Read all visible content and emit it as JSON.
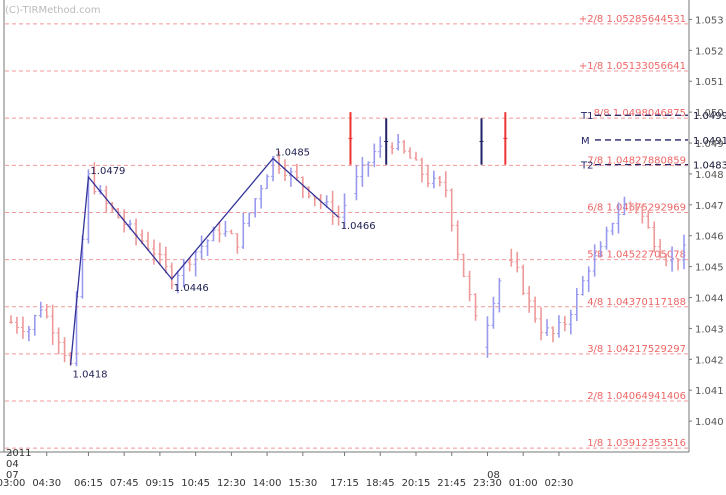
{
  "watermark": "(C)-TIRMethod.com",
  "chart_data": {
    "type": "bar",
    "subtype": "ohlc",
    "ylim": [
      1.039,
      1.0535
    ],
    "yticks": [
      1.053,
      1.052,
      1.051,
      1.05,
      1.049,
      1.048,
      1.047,
      1.046,
      1.045,
      1.044,
      1.043,
      1.042,
      1.041,
      1.04
    ],
    "ytick_labels": [
      "1.053",
      "1.052",
      "1.051",
      "1.050",
      "1.049",
      "1.048",
      "1.047",
      "1.046",
      "1.045",
      "1.044",
      "1.043",
      "1.042",
      "1.041",
      "1.040"
    ],
    "xticks": [
      {
        "i": 0,
        "label": "03:00"
      },
      {
        "i": 6,
        "label": "04:30"
      },
      {
        "i": 13,
        "label": "06:15"
      },
      {
        "i": 19,
        "label": "07:45"
      },
      {
        "i": 25,
        "label": "09:15"
      },
      {
        "i": 31,
        "label": "10:45"
      },
      {
        "i": 37,
        "label": "12:30"
      },
      {
        "i": 43,
        "label": "14:00"
      },
      {
        "i": 49,
        "label": "15:30"
      },
      {
        "i": 56,
        "label": "17:15"
      },
      {
        "i": 62,
        "label": "18:45"
      },
      {
        "i": 68,
        "label": "20:15"
      },
      {
        "i": 74,
        "label": "21:45"
      },
      {
        "i": 80,
        "label": "23:30"
      },
      {
        "i": 86,
        "label": "01:00"
      },
      {
        "i": 92,
        "label": "02:30"
      }
    ],
    "date_labels": {
      "year": "2011",
      "month": "04",
      "day": "07",
      "next_day": "08",
      "next_day_index": 80
    },
    "murrey_levels": [
      {
        "label": "+2/8 1.05285644531",
        "value": 1.05285644531
      },
      {
        "label": "+1/8 1.05133056641",
        "value": 1.05133056641
      },
      {
        "label": "8/8 1.0498046875",
        "value": 1.0498046875
      },
      {
        "label": "7/8 1.04827880859",
        "value": 1.04827880859
      },
      {
        "label": "6/8 1.04675292969",
        "value": 1.04675292969
      },
      {
        "label": "5/8 1.04522705078",
        "value": 1.04522705078
      },
      {
        "label": "4/8 1.04370117188",
        "value": 1.04370117188
      },
      {
        "label": "3/8 1.04217529297",
        "value": 1.04217529297
      },
      {
        "label": "2/8 1.04064941406",
        "value": 1.04064941406
      },
      {
        "label": "1/8 1.03912353516",
        "value": 1.03912353516
      }
    ],
    "targets": [
      {
        "name": "T1",
        "value_label": "1.0499",
        "value": 1.0499
      },
      {
        "name": "M",
        "value_label": "1.0491",
        "value": 1.0491
      },
      {
        "name": "T2",
        "value_label": "1.0483",
        "value": 1.0483
      }
    ],
    "zigzag": [
      {
        "i": 10,
        "value": 1.0418,
        "label": "1.0418"
      },
      {
        "i": 13,
        "value": 1.0479,
        "label": "1.0479"
      },
      {
        "i": 27,
        "value": 1.0446,
        "label": "1.0446"
      },
      {
        "i": 44,
        "value": 1.0485,
        "label": "1.0485"
      },
      {
        "i": 55,
        "value": 1.0466,
        "label": "1.0466"
      }
    ],
    "signal_bars": [
      {
        "i": 57,
        "high": 1.05,
        "low": 1.0483,
        "color": "#ee3333"
      },
      {
        "i": 63,
        "high": 1.0498,
        "low": 1.0483,
        "color": "#222266"
      },
      {
        "i": 79,
        "high": 1.0498,
        "low": 1.0483,
        "color": "#222266"
      },
      {
        "i": 83,
        "high": 1.05,
        "low": 1.0483,
        "color": "#ee3333"
      }
    ],
    "anchors": [
      [
        0,
        1.0432
      ],
      [
        3,
        1.043
      ],
      [
        5,
        1.0437
      ],
      [
        8,
        1.0427
      ],
      [
        10,
        1.0418
      ],
      [
        13,
        1.0479
      ],
      [
        16,
        1.047
      ],
      [
        20,
        1.0462
      ],
      [
        24,
        1.0455
      ],
      [
        27,
        1.0446
      ],
      [
        31,
        1.0455
      ],
      [
        35,
        1.0462
      ],
      [
        38,
        1.0458
      ],
      [
        41,
        1.0472
      ],
      [
        44,
        1.0485
      ],
      [
        48,
        1.0478
      ],
      [
        52,
        1.0471
      ],
      [
        55,
        1.0466
      ],
      [
        58,
        1.0478
      ],
      [
        61,
        1.0487
      ],
      [
        64,
        1.049
      ],
      [
        67,
        1.0485
      ],
      [
        70,
        1.0478
      ],
      [
        73,
        1.0475
      ],
      [
        75,
        1.0455
      ],
      [
        77,
        1.044
      ],
      [
        79,
        1.0425
      ],
      [
        81,
        1.044
      ],
      [
        83,
        1.0452
      ],
      [
        85,
        1.0448
      ],
      [
        87,
        1.0438
      ],
      [
        89,
        1.043
      ],
      [
        91,
        1.0428
      ],
      [
        93,
        1.0432
      ],
      [
        95,
        1.044
      ],
      [
        97,
        1.045
      ],
      [
        99,
        1.0455
      ],
      [
        101,
        1.0465
      ],
      [
        103,
        1.047
      ],
      [
        105,
        1.047
      ],
      [
        107,
        1.0462
      ],
      [
        109,
        1.0455
      ],
      [
        111,
        1.0452
      ],
      [
        113,
        1.0455
      ]
    ],
    "bar_count": 114,
    "colors": {
      "up": "#9999ee",
      "down": "#ee9999",
      "level_line": "#ee7777",
      "level_text": "#ee6666",
      "zigzag": "#333399",
      "zigzag_text": "#222255",
      "target_line": "#222266",
      "axis": "#777777",
      "axis_text": "#555555",
      "watermark": "#bbbbbb"
    }
  }
}
